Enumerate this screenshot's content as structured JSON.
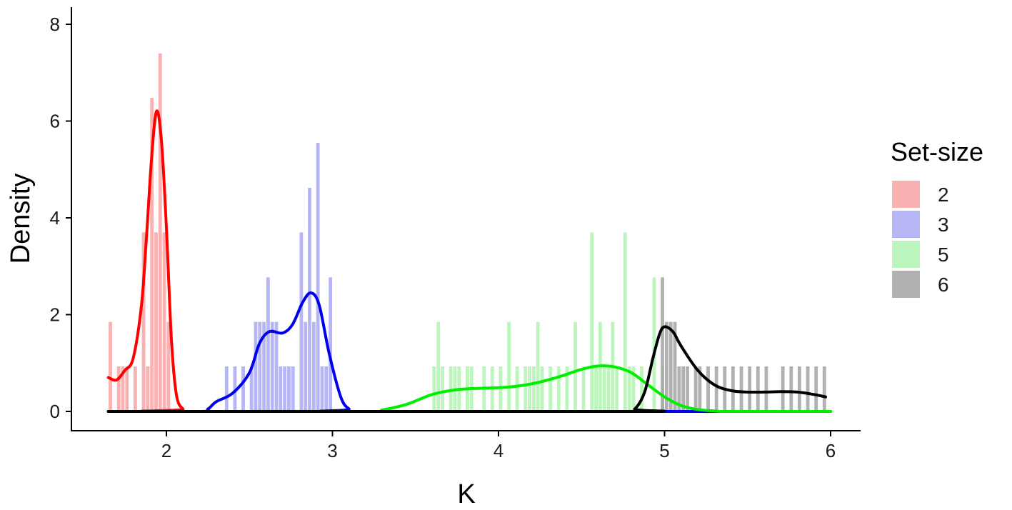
{
  "chart_data": {
    "type": "histogram-density",
    "xlabel": "K",
    "ylabel": "Density",
    "xlim": [
      1.65,
      6.0
    ],
    "ylim": [
      0,
      8
    ],
    "xticks": [
      2,
      3,
      4,
      5,
      6
    ],
    "yticks": [
      0,
      2,
      4,
      6,
      8
    ],
    "grid": false,
    "legend": {
      "title": "Set-size",
      "position": "right"
    },
    "bin_width": 0.025,
    "series": [
      {
        "name": "2",
        "fill_color": "#f8a3a3",
        "line_color": "#ff0000",
        "bins": [
          [
            1.65,
            1.85
          ],
          [
            1.7,
            0.93
          ],
          [
            1.725,
            0.93
          ],
          [
            1.75,
            0.93
          ],
          [
            1.8,
            0.93
          ],
          [
            1.85,
            3.7
          ],
          [
            1.875,
            0.93
          ],
          [
            1.9,
            6.48
          ],
          [
            1.925,
            3.7
          ],
          [
            1.95,
            7.4
          ],
          [
            1.975,
            3.7
          ],
          [
            2.0,
            1.85
          ]
        ],
        "density": [
          [
            1.65,
            0.7
          ],
          [
            1.7,
            0.65
          ],
          [
            1.75,
            0.85
          ],
          [
            1.8,
            1.1
          ],
          [
            1.85,
            2.2
          ],
          [
            1.88,
            3.6
          ],
          [
            1.91,
            5.2
          ],
          [
            1.94,
            6.2
          ],
          [
            1.97,
            5.6
          ],
          [
            2.0,
            3.8
          ],
          [
            2.03,
            1.5
          ],
          [
            2.06,
            0.35
          ],
          [
            2.1,
            0.05
          ],
          [
            2.15,
            0
          ],
          [
            6.0,
            0
          ]
        ]
      },
      {
        "name": "3",
        "fill_color": "#a9a9f5",
        "line_color": "#0000ee",
        "bins": [
          [
            2.35,
            0.93
          ],
          [
            2.4,
            0.93
          ],
          [
            2.45,
            0.93
          ],
          [
            2.5,
            0.93
          ],
          [
            2.525,
            1.85
          ],
          [
            2.55,
            1.85
          ],
          [
            2.575,
            1.85
          ],
          [
            2.6,
            2.77
          ],
          [
            2.625,
            1.85
          ],
          [
            2.65,
            1.85
          ],
          [
            2.675,
            0.93
          ],
          [
            2.7,
            0.93
          ],
          [
            2.725,
            0.93
          ],
          [
            2.75,
            0.93
          ],
          [
            2.8,
            3.7
          ],
          [
            2.825,
            1.85
          ],
          [
            2.85,
            4.62
          ],
          [
            2.875,
            1.85
          ],
          [
            2.9,
            5.55
          ],
          [
            2.925,
            0.93
          ],
          [
            2.95,
            0.93
          ],
          [
            2.975,
            2.77
          ]
        ],
        "density": [
          [
            1.65,
            0
          ],
          [
            2.2,
            0
          ],
          [
            2.25,
            0.05
          ],
          [
            2.3,
            0.2
          ],
          [
            2.4,
            0.38
          ],
          [
            2.5,
            0.8
          ],
          [
            2.56,
            1.4
          ],
          [
            2.62,
            1.65
          ],
          [
            2.7,
            1.62
          ],
          [
            2.76,
            1.8
          ],
          [
            2.82,
            2.25
          ],
          [
            2.87,
            2.45
          ],
          [
            2.92,
            2.2
          ],
          [
            2.98,
            1.2
          ],
          [
            3.05,
            0.3
          ],
          [
            3.1,
            0.05
          ],
          [
            3.15,
            0
          ],
          [
            6.0,
            0
          ]
        ]
      },
      {
        "name": "5",
        "fill_color": "#b0f5b0",
        "line_color": "#00ee00",
        "bins": [
          [
            3.6,
            0.93
          ],
          [
            3.625,
            1.85
          ],
          [
            3.65,
            0.93
          ],
          [
            3.7,
            0.93
          ],
          [
            3.725,
            0.93
          ],
          [
            3.75,
            0.93
          ],
          [
            3.8,
            0.93
          ],
          [
            3.825,
            0.93
          ],
          [
            3.9,
            0.93
          ],
          [
            3.95,
            0.93
          ],
          [
            4.0,
            0.93
          ],
          [
            4.05,
            1.85
          ],
          [
            4.1,
            0.93
          ],
          [
            4.15,
            0.93
          ],
          [
            4.175,
            0.93
          ],
          [
            4.2,
            0.93
          ],
          [
            4.225,
            1.85
          ],
          [
            4.25,
            0.93
          ],
          [
            4.3,
            0.93
          ],
          [
            4.35,
            0.93
          ],
          [
            4.4,
            0.93
          ],
          [
            4.45,
            1.85
          ],
          [
            4.5,
            0.93
          ],
          [
            4.55,
            3.7
          ],
          [
            4.575,
            0.93
          ],
          [
            4.6,
            1.85
          ],
          [
            4.625,
            0.93
          ],
          [
            4.65,
            0.93
          ],
          [
            4.675,
            1.85
          ],
          [
            4.7,
            0.93
          ],
          [
            4.75,
            3.7
          ],
          [
            4.775,
            0.93
          ],
          [
            4.8,
            0.93
          ],
          [
            4.85,
            0.93
          ],
          [
            4.925,
            2.77
          ],
          [
            4.975,
            0.93
          ]
        ],
        "density": [
          [
            1.65,
            0
          ],
          [
            3.2,
            0
          ],
          [
            3.3,
            0.03
          ],
          [
            3.45,
            0.15
          ],
          [
            3.6,
            0.35
          ],
          [
            3.75,
            0.45
          ],
          [
            3.9,
            0.48
          ],
          [
            4.05,
            0.5
          ],
          [
            4.2,
            0.57
          ],
          [
            4.35,
            0.7
          ],
          [
            4.5,
            0.87
          ],
          [
            4.6,
            0.94
          ],
          [
            4.7,
            0.92
          ],
          [
            4.8,
            0.8
          ],
          [
            4.9,
            0.55
          ],
          [
            5.0,
            0.3
          ],
          [
            5.1,
            0.12
          ],
          [
            5.2,
            0.04
          ],
          [
            5.3,
            0.01
          ],
          [
            5.4,
            0
          ],
          [
            6.0,
            0
          ]
        ]
      },
      {
        "name": "6",
        "fill_color": "#a3a3a3",
        "line_color": "#000000",
        "bins": [
          [
            4.975,
            2.77
          ],
          [
            5.0,
            1.85
          ],
          [
            5.025,
            1.85
          ],
          [
            5.05,
            1.85
          ],
          [
            5.075,
            0.93
          ],
          [
            5.1,
            0.93
          ],
          [
            5.125,
            0.93
          ],
          [
            5.175,
            0.93
          ],
          [
            5.2,
            0.93
          ],
          [
            5.25,
            0.93
          ],
          [
            5.3,
            0.93
          ],
          [
            5.35,
            0.93
          ],
          [
            5.4,
            0.93
          ],
          [
            5.45,
            0.93
          ],
          [
            5.5,
            0.93
          ],
          [
            5.55,
            0.93
          ],
          [
            5.6,
            0.93
          ],
          [
            5.7,
            0.93
          ],
          [
            5.75,
            0.93
          ],
          [
            5.8,
            0.93
          ],
          [
            5.85,
            0.93
          ],
          [
            5.9,
            0.93
          ],
          [
            5.95,
            0.93
          ]
        ],
        "density": [
          [
            1.65,
            0
          ],
          [
            4.75,
            0
          ],
          [
            4.82,
            0.05
          ],
          [
            4.88,
            0.4
          ],
          [
            4.93,
            1.1
          ],
          [
            4.97,
            1.6
          ],
          [
            5.0,
            1.75
          ],
          [
            5.05,
            1.65
          ],
          [
            5.1,
            1.35
          ],
          [
            5.2,
            0.85
          ],
          [
            5.3,
            0.55
          ],
          [
            5.4,
            0.43
          ],
          [
            5.5,
            0.4
          ],
          [
            5.6,
            0.4
          ],
          [
            5.7,
            0.41
          ],
          [
            5.8,
            0.4
          ],
          [
            5.9,
            0.35
          ],
          [
            5.97,
            0.3
          ]
        ]
      }
    ]
  }
}
